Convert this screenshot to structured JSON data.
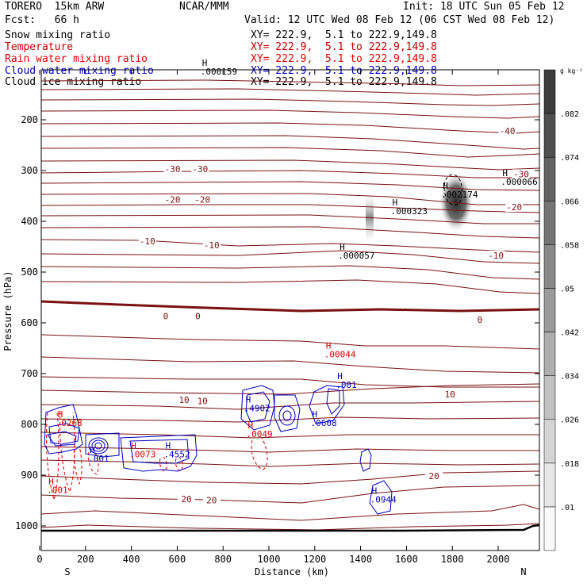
{
  "header": {
    "model": "TORERO  15km ARW",
    "org": "NCAR/MMM",
    "init": "Init: 18 UTC Sun 05 Feb 12",
    "fcst": "Fcst:   66 h",
    "valid": "Valid: 12 UTC Wed 08 Feb 12 (06 CST Wed 08 Feb 12)",
    "fields": [
      {
        "name": "Snow mixing ratio",
        "xy": "XY= 222.9,  5.1 to 222.9,149.8",
        "color": "#000000"
      },
      {
        "name": "Temperature",
        "xy": "XY= 222.9,  5.1 to 222.9,149.8",
        "color": "#c00000"
      },
      {
        "name": "Rain water mixing ratio",
        "xy": "XY= 222.9,  5.1 to 222.9,149.8",
        "color": "#e00000"
      },
      {
        "name": "Cloud water mixing ratio",
        "xy": "XY= 222.9,  5.1 to 222.9,149.8",
        "color": "#0000c0"
      },
      {
        "name": "Cloud ice mixing ratio",
        "xy": "XY= 222.9,  5.1 to 222.9,149.8",
        "color": "#000000"
      }
    ]
  },
  "chart_data": {
    "type": "contour-cross-section",
    "xlabel": "Distance (km)",
    "ylabel": "Pressure (hPa)",
    "xlim": [
      0,
      2180
    ],
    "ylim": [
      1050,
      100
    ],
    "x_ticks": [
      0,
      200,
      400,
      600,
      800,
      1000,
      1200,
      1400,
      1600,
      1800,
      2000
    ],
    "y_ticks": [
      200,
      300,
      400,
      500,
      600,
      700,
      800,
      900,
      1000
    ],
    "x_endpoints": {
      "left": "S",
      "right": "N"
    },
    "colorbar": {
      "unit": "g kg⁻¹",
      "ticks": [
        ".01",
        ".018",
        ".026",
        ".034",
        ".042",
        ".05",
        ".058",
        ".066",
        ".074",
        ".082"
      ]
    },
    "temperature_labels": [
      {
        "text": "-40",
        "x": 2040,
        "p": 225
      },
      {
        "text": "-30",
        "x": 580,
        "p": 300
      },
      {
        "text": "-30",
        "x": 700,
        "p": 300
      },
      {
        "text": "-30",
        "x": 2100,
        "p": 310
      },
      {
        "text": "-20",
        "x": 580,
        "p": 360
      },
      {
        "text": "-20",
        "x": 710,
        "p": 360
      },
      {
        "text": "-20",
        "x": 2070,
        "p": 375
      },
      {
        "text": "-10",
        "x": 470,
        "p": 442
      },
      {
        "text": "-10",
        "x": 750,
        "p": 450
      },
      {
        "text": "-10",
        "x": 1990,
        "p": 470
      },
      {
        "text": "0",
        "x": 550,
        "p": 590
      },
      {
        "text": "0",
        "x": 690,
        "p": 590
      },
      {
        "text": "0",
        "x": 1920,
        "p": 597
      },
      {
        "text": "10",
        "x": 630,
        "p": 755
      },
      {
        "text": "10",
        "x": 710,
        "p": 757
      },
      {
        "text": "10",
        "x": 1790,
        "p": 744
      },
      {
        "text": "20",
        "x": 1720,
        "p": 905
      },
      {
        "text": "20",
        "x": 640,
        "p": 950
      },
      {
        "text": "20",
        "x": 750,
        "p": 952
      }
    ],
    "extrema_labels": [
      {
        "text": ".000159",
        "x": 750,
        "p": 108,
        "color": "#000000"
      },
      {
        "text": ".000057",
        "x": 1350,
        "p": 470,
        "color": "#000000"
      },
      {
        "text": ".000323",
        "x": 1580,
        "p": 383,
        "color": "#000000"
      },
      {
        "text": ".002174",
        "x": 1800,
        "p": 350,
        "color": "#000000"
      },
      {
        "text": ".000066",
        "x": 2060,
        "p": 325,
        "color": "#000000"
      },
      {
        "text": ".00044",
        "x": 1290,
        "p": 665,
        "color": "#e00000"
      },
      {
        "text": ".0049",
        "x": 950,
        "p": 822,
        "color": "#e00000"
      },
      {
        "text": ".0073",
        "x": 440,
        "p": 862,
        "color": "#e00000"
      },
      {
        "text": ".0268",
        "x": 120,
        "p": 800,
        "color": "#e00000"
      },
      {
        "text": ".001",
        "x": 80,
        "p": 932,
        "color": "#e00000"
      },
      {
        "text": ".001",
        "x": 1340,
        "p": 725,
        "color": "#0000c0"
      },
      {
        "text": ".4902",
        "x": 940,
        "p": 771,
        "color": "#0000c0"
      },
      {
        "text": ".0608",
        "x": 1230,
        "p": 800,
        "color": "#0000c0"
      },
      {
        "text": ".4552",
        "x": 590,
        "p": 862,
        "color": "#0000c0"
      },
      {
        "text": ".001",
        "x": 260,
        "p": 870,
        "color": "#0000c0"
      },
      {
        "text": ".0944",
        "x": 1490,
        "p": 951,
        "color": "#0000c0"
      }
    ]
  }
}
